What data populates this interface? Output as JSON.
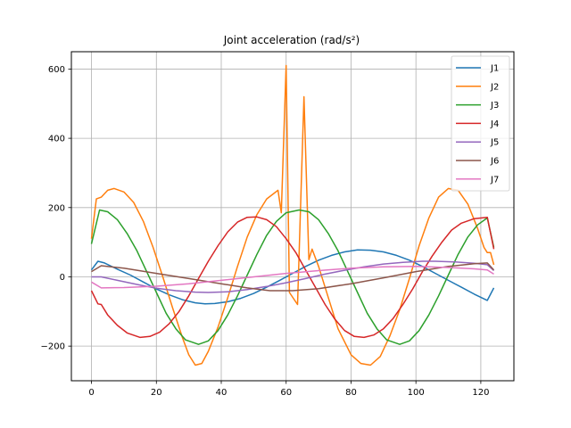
{
  "chart_data": {
    "type": "line",
    "title": "Joint acceleration (rad/s²)",
    "xlabel": "",
    "ylabel": "",
    "xlim": [
      -6.2,
      130.2
    ],
    "ylim": [
      -300,
      650
    ],
    "grid": true,
    "legend_position": "upper right",
    "x_ticks": [
      0,
      20,
      40,
      60,
      80,
      100,
      120
    ],
    "x_tick_labels": [
      "0",
      "20",
      "40",
      "60",
      "80",
      "100",
      "120"
    ],
    "y_ticks": [
      -200,
      0,
      200,
      400,
      600
    ],
    "y_tick_labels": [
      "−200",
      "0",
      "200",
      "400",
      "600"
    ],
    "series": [
      {
        "name": "J1",
        "color": "#1f77b4",
        "points": [
          [
            0,
            20
          ],
          [
            2,
            45
          ],
          [
            4,
            40
          ],
          [
            8,
            22
          ],
          [
            12,
            5
          ],
          [
            16,
            -15
          ],
          [
            20,
            -35
          ],
          [
            24,
            -52
          ],
          [
            28,
            -66
          ],
          [
            32,
            -75
          ],
          [
            35,
            -78
          ],
          [
            38,
            -77
          ],
          [
            42,
            -72
          ],
          [
            46,
            -62
          ],
          [
            50,
            -48
          ],
          [
            54,
            -30
          ],
          [
            58,
            -10
          ],
          [
            62,
            10
          ],
          [
            66,
            30
          ],
          [
            70,
            48
          ],
          [
            74,
            62
          ],
          [
            78,
            72
          ],
          [
            82,
            78
          ],
          [
            86,
            77
          ],
          [
            90,
            72
          ],
          [
            94,
            62
          ],
          [
            98,
            48
          ],
          [
            102,
            30
          ],
          [
            106,
            10
          ],
          [
            110,
            -10
          ],
          [
            114,
            -30
          ],
          [
            118,
            -50
          ],
          [
            122,
            -68
          ],
          [
            124,
            -32
          ]
        ]
      },
      {
        "name": "J2",
        "color": "#ff7f0e",
        "points": [
          [
            0,
            110
          ],
          [
            1.5,
            225
          ],
          [
            3,
            230
          ],
          [
            5,
            250
          ],
          [
            7,
            255
          ],
          [
            10,
            245
          ],
          [
            13,
            215
          ],
          [
            16,
            160
          ],
          [
            19,
            85
          ],
          [
            22,
            0
          ],
          [
            25,
            -90
          ],
          [
            28,
            -175
          ],
          [
            30,
            -225
          ],
          [
            32,
            -255
          ],
          [
            34,
            -250
          ],
          [
            36,
            -215
          ],
          [
            39,
            -145
          ],
          [
            42,
            -60
          ],
          [
            45,
            30
          ],
          [
            48,
            115
          ],
          [
            51,
            180
          ],
          [
            54,
            225
          ],
          [
            57.5,
            250
          ],
          [
            58.5,
            185
          ],
          [
            60,
            610
          ],
          [
            61,
            -45
          ],
          [
            63.5,
            -80
          ],
          [
            65.5,
            520
          ],
          [
            67,
            50
          ],
          [
            68,
            80
          ],
          [
            70,
            30
          ],
          [
            73,
            -60
          ],
          [
            76,
            -150
          ],
          [
            80,
            -225
          ],
          [
            83,
            -250
          ],
          [
            86,
            -255
          ],
          [
            89,
            -230
          ],
          [
            92,
            -170
          ],
          [
            95,
            -95
          ],
          [
            98,
            -5
          ],
          [
            101,
            90
          ],
          [
            104,
            170
          ],
          [
            107,
            230
          ],
          [
            110,
            255
          ],
          [
            113,
            250
          ],
          [
            116,
            210
          ],
          [
            119,
            140
          ],
          [
            121,
            85
          ],
          [
            122,
            70
          ],
          [
            123,
            70
          ],
          [
            124,
            35
          ]
        ]
      },
      {
        "name": "J3",
        "color": "#2ca02c",
        "points": [
          [
            0,
            95
          ],
          [
            2.5,
            193
          ],
          [
            5,
            188
          ],
          [
            8,
            165
          ],
          [
            11,
            125
          ],
          [
            14,
            75
          ],
          [
            17,
            15
          ],
          [
            20,
            -45
          ],
          [
            23,
            -105
          ],
          [
            26,
            -150
          ],
          [
            29,
            -182
          ],
          [
            33,
            -195
          ],
          [
            36,
            -185
          ],
          [
            39,
            -155
          ],
          [
            42,
            -110
          ],
          [
            45,
            -55
          ],
          [
            48,
            5
          ],
          [
            51,
            65
          ],
          [
            54,
            120
          ],
          [
            57,
            160
          ],
          [
            60,
            185
          ],
          [
            64,
            193
          ],
          [
            67,
            188
          ],
          [
            70,
            165
          ],
          [
            73,
            125
          ],
          [
            76,
            75
          ],
          [
            79,
            15
          ],
          [
            82,
            -45
          ],
          [
            85,
            -105
          ],
          [
            88,
            -150
          ],
          [
            91,
            -182
          ],
          [
            95,
            -195
          ],
          [
            98,
            -185
          ],
          [
            101,
            -155
          ],
          [
            104,
            -110
          ],
          [
            107,
            -55
          ],
          [
            110,
            5
          ],
          [
            113,
            65
          ],
          [
            116,
            115
          ],
          [
            119,
            150
          ],
          [
            122,
            170
          ],
          [
            124,
            85
          ]
        ]
      },
      {
        "name": "J4",
        "color": "#d62728",
        "points": [
          [
            0,
            -40
          ],
          [
            2,
            -78
          ],
          [
            3,
            -80
          ],
          [
            5,
            -110
          ],
          [
            8,
            -140
          ],
          [
            11,
            -162
          ],
          [
            15,
            -175
          ],
          [
            18,
            -172
          ],
          [
            21,
            -160
          ],
          [
            24,
            -135
          ],
          [
            27,
            -100
          ],
          [
            30,
            -55
          ],
          [
            33,
            -5
          ],
          [
            36,
            45
          ],
          [
            39,
            90
          ],
          [
            42,
            130
          ],
          [
            45,
            158
          ],
          [
            48,
            172
          ],
          [
            51,
            173
          ],
          [
            54,
            165
          ],
          [
            57,
            145
          ],
          [
            60,
            110
          ],
          [
            63,
            70
          ],
          [
            66,
            20
          ],
          [
            69,
            -30
          ],
          [
            72,
            -80
          ],
          [
            75,
            -122
          ],
          [
            78,
            -155
          ],
          [
            81,
            -172
          ],
          [
            84,
            -175
          ],
          [
            87,
            -168
          ],
          [
            90,
            -150
          ],
          [
            93,
            -120
          ],
          [
            96,
            -80
          ],
          [
            99,
            -35
          ],
          [
            102,
            15
          ],
          [
            105,
            60
          ],
          [
            108,
            100
          ],
          [
            111,
            135
          ],
          [
            114,
            155
          ],
          [
            118,
            168
          ],
          [
            122,
            172
          ],
          [
            124,
            80
          ]
        ]
      },
      {
        "name": "J5",
        "color": "#9467bd",
        "points": [
          [
            0,
            0
          ],
          [
            3,
            0
          ],
          [
            8,
            -10
          ],
          [
            14,
            -22
          ],
          [
            20,
            -33
          ],
          [
            26,
            -40
          ],
          [
            32,
            -44
          ],
          [
            36,
            -45
          ],
          [
            42,
            -43
          ],
          [
            48,
            -37
          ],
          [
            54,
            -28
          ],
          [
            60,
            -17
          ],
          [
            66,
            -5
          ],
          [
            72,
            8
          ],
          [
            78,
            19
          ],
          [
            84,
            29
          ],
          [
            90,
            37
          ],
          [
            96,
            42
          ],
          [
            102,
            45
          ],
          [
            106,
            45
          ],
          [
            112,
            43
          ],
          [
            118,
            39
          ],
          [
            122,
            35
          ],
          [
            124,
            18
          ]
        ]
      },
      {
        "name": "J6",
        "color": "#8c564b",
        "points": [
          [
            0,
            15
          ],
          [
            3,
            32
          ],
          [
            10,
            25
          ],
          [
            20,
            10
          ],
          [
            30,
            -5
          ],
          [
            40,
            -20
          ],
          [
            48,
            -32
          ],
          [
            55,
            -40
          ],
          [
            62,
            -40
          ],
          [
            70,
            -34
          ],
          [
            80,
            -20
          ],
          [
            90,
            -3
          ],
          [
            100,
            15
          ],
          [
            110,
            30
          ],
          [
            118,
            38
          ],
          [
            122,
            40
          ],
          [
            124,
            20
          ]
        ]
      },
      {
        "name": "J7",
        "color": "#e377c2",
        "points": [
          [
            0,
            -15
          ],
          [
            3,
            -32
          ],
          [
            10,
            -31
          ],
          [
            20,
            -27
          ],
          [
            30,
            -20
          ],
          [
            40,
            -10
          ],
          [
            50,
            0
          ],
          [
            60,
            10
          ],
          [
            70,
            18
          ],
          [
            80,
            25
          ],
          [
            90,
            29
          ],
          [
            100,
            30
          ],
          [
            110,
            27
          ],
          [
            118,
            23
          ],
          [
            122,
            20
          ],
          [
            124,
            8
          ]
        ]
      }
    ]
  }
}
